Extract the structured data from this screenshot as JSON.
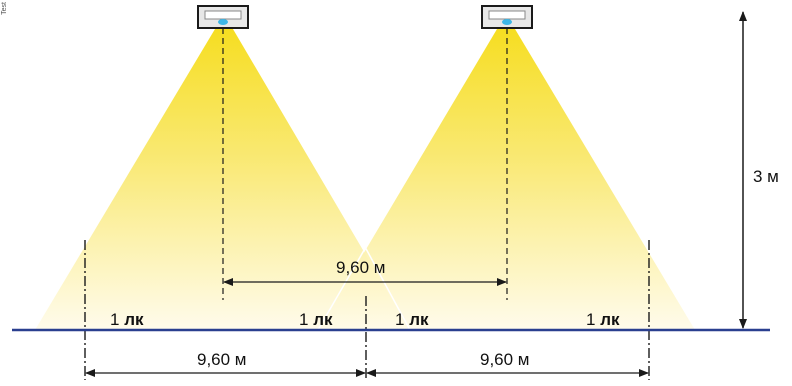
{
  "luminaires": [
    {
      "id": "left",
      "icon": "ceiling-light-icon"
    },
    {
      "id": "right",
      "icon": "ceiling-light-icon"
    }
  ],
  "labels": {
    "height": "3 м",
    "spacing_between_lights": "9,60 м",
    "bottom_left_span": "9,60 м",
    "bottom_right_span": "9,60 м",
    "side_mark": "Test"
  },
  "lux_labels": [
    {
      "value": "1",
      "unit": "лк"
    },
    {
      "value": "1",
      "unit": "лк"
    },
    {
      "value": "1",
      "unit": "лк"
    },
    {
      "value": "1",
      "unit": "лк"
    }
  ],
  "colors": {
    "light_cone_top": "#f7df2a",
    "light_cone_bottom": "#fffbe8",
    "floor_line": "#2a3f8f",
    "luminaire_body": "#e9e9e9",
    "luminaire_lens": "#3db6e6",
    "line": "#1a1a1a"
  }
}
